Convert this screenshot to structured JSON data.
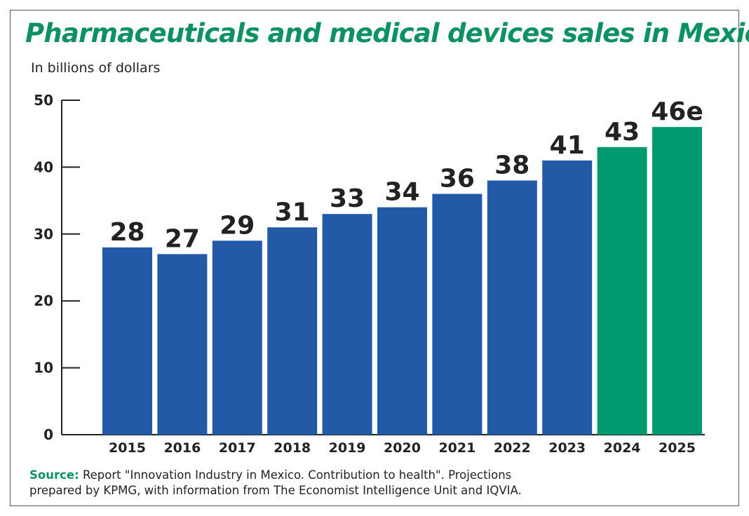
{
  "chart_data": {
    "type": "bar",
    "title": "Pharmaceuticals and medical devices sales in Mexico",
    "subtitle": "In billions of dollars",
    "categories": [
      "2015",
      "2016",
      "2017",
      "2018",
      "2019",
      "2020",
      "2021",
      "2022",
      "2023",
      "2024",
      "2025"
    ],
    "values": [
      28,
      27,
      29,
      31,
      33,
      34,
      36,
      38,
      41,
      43,
      46
    ],
    "data_labels": [
      "28",
      "27",
      "29",
      "31",
      "33",
      "34",
      "36",
      "38",
      "41",
      "43",
      "46e"
    ],
    "estimated": [
      false,
      false,
      false,
      false,
      false,
      false,
      false,
      false,
      false,
      true,
      true
    ],
    "ylim": [
      0,
      50
    ],
    "yticks": [
      0,
      10,
      20,
      30,
      40,
      50
    ],
    "xlabel": "",
    "ylabel": "",
    "grid": false,
    "colors": {
      "actual": "#235aa8",
      "projected": "#009a6e",
      "title": "#0e9160"
    }
  },
  "source": {
    "label": "Source:",
    "text_line1": "Report \"Innovation Industry in Mexico. Contribution to health\". Projections",
    "text_line2": "prepared by KPMG, with information from The Economist Intelligence Unit and IQVIA."
  }
}
